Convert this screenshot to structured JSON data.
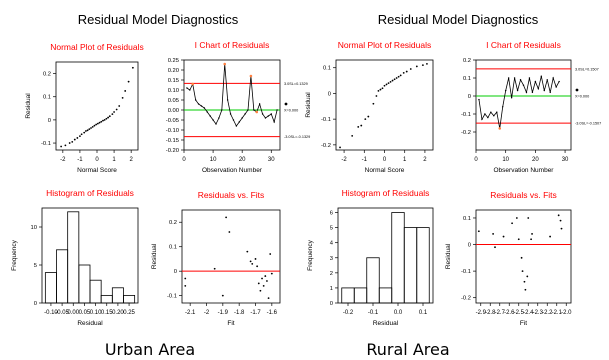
{
  "panels": [
    {
      "main_title": "Residual Model Diagnostics",
      "caption": "Urban Area"
    },
    {
      "main_title": "Residual Model Diagnostics",
      "caption": "Rural Area"
    }
  ],
  "colors": {
    "subplot_title": "#ff0000",
    "ref_line": "#ff0000",
    "center_line": "#00cc00",
    "points": "#000000",
    "flag_points": "#ff8040"
  },
  "chart_data": [
    {
      "panel": "Urban Area",
      "type": "scatter",
      "title": "Normal Plot of Residuals",
      "xlabel": "Normal Score",
      "ylabel": "Residual",
      "xlim": [
        -2.4,
        2.4
      ],
      "ylim": [
        -0.13,
        0.25
      ],
      "xticks": [
        -2,
        -1,
        0,
        1,
        2
      ],
      "yticks": [
        -0.1,
        0.0,
        0.1,
        0.2
      ],
      "points": [
        [
          -2.1,
          -0.115
        ],
        [
          -1.85,
          -0.11
        ],
        [
          -1.6,
          -0.1
        ],
        [
          -1.45,
          -0.095
        ],
        [
          -1.3,
          -0.085
        ],
        [
          -1.15,
          -0.078
        ],
        [
          -1.0,
          -0.07
        ],
        [
          -0.9,
          -0.062
        ],
        [
          -0.75,
          -0.055
        ],
        [
          -0.65,
          -0.048
        ],
        [
          -0.55,
          -0.045
        ],
        [
          -0.45,
          -0.04
        ],
        [
          -0.35,
          -0.035
        ],
        [
          -0.25,
          -0.03
        ],
        [
          -0.15,
          -0.025
        ],
        [
          -0.05,
          -0.02
        ],
        [
          0.05,
          -0.016
        ],
        [
          0.15,
          -0.012
        ],
        [
          0.25,
          -0.008
        ],
        [
          0.35,
          -0.003
        ],
        [
          0.45,
          0.0
        ],
        [
          0.55,
          0.005
        ],
        [
          0.65,
          0.01
        ],
        [
          0.75,
          0.016
        ],
        [
          0.9,
          0.025
        ],
        [
          1.0,
          0.034
        ],
        [
          1.15,
          0.045
        ],
        [
          1.3,
          0.06
        ],
        [
          1.5,
          0.095
        ],
        [
          1.65,
          0.125
        ],
        [
          1.85,
          0.165
        ],
        [
          2.1,
          0.225
        ]
      ]
    },
    {
      "panel": "Urban Area",
      "type": "line",
      "title": "I Chart of Residuals",
      "xlabel": "Observation Number",
      "ylabel": "",
      "xlim": [
        0,
        33
      ],
      "ylim": [
        -0.2,
        0.25
      ],
      "xticks": [
        0,
        10,
        20,
        30
      ],
      "yticks": [
        -0.2,
        -0.15,
        -0.1,
        -0.05,
        0.0,
        0.05,
        0.1,
        0.15,
        0.2,
        0.25
      ],
      "ytick_labels": [
        "-0.20",
        "-0.15",
        "-0.10",
        "-0.05",
        "0.00",
        "0.05",
        "0.10",
        "0.15",
        "0.20",
        "0.25"
      ],
      "ucl": 0.1329,
      "center": 0.0,
      "lcl": -0.1329,
      "ucl_label": "3.0SL=0.1329",
      "center_label": "X=0.000",
      "lcl_label": "-3.0SL=-0.1329",
      "y": [
        0.11,
        0.1,
        0.13,
        0.05,
        0.03,
        0.02,
        0.01,
        -0.01,
        -0.03,
        -0.05,
        -0.07,
        -0.04,
        0.0,
        0.23,
        0.05,
        -0.02,
        -0.05,
        -0.08,
        -0.06,
        -0.04,
        -0.02,
        0.0,
        0.17,
        0.0,
        -0.01,
        0.03,
        -0.02,
        -0.04,
        -0.03,
        -0.02,
        -0.06,
        0.0
      ],
      "flagged": [
        2,
        13,
        22,
        24
      ]
    },
    {
      "panel": "Urban Area",
      "type": "bar",
      "title": "Histogram of Residuals",
      "xlabel": "Residual",
      "ylabel": "Frequency",
      "bin_edges": [
        -0.125,
        -0.075,
        -0.025,
        0.025,
        0.075,
        0.125,
        0.175,
        0.225,
        0.275
      ],
      "values": [
        4,
        7,
        12,
        5,
        3,
        1,
        2,
        1
      ],
      "xlim": [
        -0.14,
        0.29
      ],
      "ylim": [
        0,
        12.5
      ],
      "xticks": [
        -0.1,
        -0.05,
        0.0,
        0.05,
        0.1,
        0.15,
        0.2,
        0.25
      ],
      "xtick_labels": [
        "-0.10",
        "-0.05",
        "0.00",
        "0.05",
        "0.10",
        "0.15",
        "0.20",
        "0.25"
      ],
      "yticks": [
        0,
        5,
        10
      ]
    },
    {
      "panel": "Urban Area",
      "type": "scatter",
      "title": "Residuals vs. Fits",
      "xlabel": "Fit",
      "ylabel": "Residual",
      "xlim": [
        -2.15,
        -1.55
      ],
      "ylim": [
        -0.13,
        0.25
      ],
      "xticks": [
        -2.1,
        -2.0,
        -1.9,
        -1.8,
        -1.7,
        -1.6
      ],
      "yticks": [
        -0.1,
        0.0,
        0.1,
        0.2
      ],
      "points": [
        [
          -2.13,
          -0.03
        ],
        [
          -2.13,
          -0.06
        ],
        [
          -1.95,
          0.01
        ],
        [
          -1.9,
          -0.1
        ],
        [
          -1.88,
          0.22
        ],
        [
          -1.86,
          0.16
        ],
        [
          -1.75,
          0.08
        ],
        [
          -1.73,
          0.04
        ],
        [
          -1.72,
          0.03
        ],
        [
          -1.7,
          0.05
        ],
        [
          -1.69,
          0.02
        ],
        [
          -1.68,
          -0.05
        ],
        [
          -1.67,
          -0.08
        ],
        [
          -1.66,
          -0.03
        ],
        [
          -1.65,
          -0.06
        ],
        [
          -1.64,
          -0.02
        ],
        [
          -1.63,
          -0.04
        ],
        [
          -1.62,
          -0.11
        ],
        [
          -1.61,
          0.07
        ],
        [
          -1.6,
          -0.01
        ]
      ]
    },
    {
      "panel": "Rural Area",
      "type": "scatter",
      "title": "Normal Plot of Residuals",
      "xlabel": "Normal Score",
      "ylabel": "Residual",
      "xlim": [
        -2.4,
        2.4
      ],
      "ylim": [
        -0.22,
        0.13
      ],
      "xticks": [
        -2,
        -1,
        0,
        1,
        2
      ],
      "yticks": [
        -0.2,
        -0.1,
        0.0,
        0.1
      ],
      "points": [
        [
          -2.2,
          -0.21
        ],
        [
          -1.6,
          -0.165
        ],
        [
          -1.3,
          -0.13
        ],
        [
          -1.15,
          -0.125
        ],
        [
          -0.95,
          -0.1
        ],
        [
          -0.8,
          -0.09
        ],
        [
          -0.55,
          -0.04
        ],
        [
          -0.4,
          -0.01
        ],
        [
          -0.3,
          0.01
        ],
        [
          -0.2,
          0.015
        ],
        [
          -0.1,
          0.02
        ],
        [
          0.0,
          0.03
        ],
        [
          0.1,
          0.035
        ],
        [
          0.2,
          0.04
        ],
        [
          0.3,
          0.045
        ],
        [
          0.4,
          0.05
        ],
        [
          0.5,
          0.055
        ],
        [
          0.6,
          0.06
        ],
        [
          0.7,
          0.065
        ],
        [
          0.8,
          0.07
        ],
        [
          0.95,
          0.08
        ],
        [
          1.1,
          0.085
        ],
        [
          1.3,
          0.095
        ],
        [
          1.6,
          0.105
        ],
        [
          1.9,
          0.11
        ],
        [
          2.1,
          0.115
        ]
      ]
    },
    {
      "panel": "Rural Area",
      "type": "line",
      "title": "I Chart of Residuals",
      "xlabel": "Observation Number",
      "ylabel": "Residual",
      "xlim": [
        0,
        32
      ],
      "ylim": [
        -0.3,
        0.2
      ],
      "xticks": [
        0,
        10,
        20,
        30
      ],
      "yticks": [
        -0.2,
        -0.1,
        0.0,
        0.1,
        0.2
      ],
      "ucl": 0.1507,
      "center": 0.0,
      "lcl": -0.1507,
      "ucl_label": "3.0SL=0.1507",
      "center_label": "X=0.000",
      "lcl_label": "-3.0SL=-0.1507",
      "y": [
        -0.02,
        -0.13,
        -0.1,
        -0.12,
        -0.09,
        -0.11,
        -0.09,
        -0.18,
        -0.06,
        0.03,
        0.1,
        -0.01,
        0.1,
        0.03,
        0.09,
        0.06,
        0.02,
        0.1,
        0.02,
        0.08,
        0.04,
        0.11,
        0.03,
        0.09,
        0.02,
        0.1,
        0.05,
        0.08
      ],
      "flagged": [
        7
      ]
    },
    {
      "panel": "Rural Area",
      "type": "bar",
      "title": "Histogram of Residuals",
      "xlabel": "Residual",
      "ylabel": "Frequency",
      "bin_edges": [
        -0.225,
        -0.175,
        -0.125,
        -0.075,
        -0.025,
        0.025,
        0.075,
        0.125
      ],
      "values": [
        1,
        1,
        3,
        1,
        6,
        5,
        5
      ],
      "xlim": [
        -0.24,
        0.14
      ],
      "ylim": [
        0,
        6.3
      ],
      "xticks": [
        -0.2,
        -0.1,
        0.0,
        0.1
      ],
      "xtick_labels": [
        "-0.2",
        "-0.1",
        "0.0",
        "0.1"
      ],
      "yticks": [
        0,
        1,
        2,
        3,
        4,
        5,
        6
      ]
    },
    {
      "panel": "Rural Area",
      "type": "scatter",
      "title": "Residuals vs. Fits",
      "xlabel": "Fit",
      "ylabel": "Residual",
      "xlim": [
        -2.95,
        -1.95
      ],
      "ylim": [
        -0.22,
        0.13
      ],
      "xticks": [
        -2.9,
        -2.8,
        -2.7,
        -2.6,
        -2.5,
        -2.4,
        -2.3,
        -2.2,
        -2.1,
        -2.0
      ],
      "xtick_labels": [
        "-2.9",
        "-2.8",
        "-2.7",
        "-2.6",
        "-2.5",
        "-2.4",
        "-2.3",
        "-2.2",
        "-2.1",
        "-2.0"
      ],
      "yticks": [
        -0.2,
        -0.1,
        0.0,
        0.1
      ],
      "points": [
        [
          -2.92,
          0.05
        ],
        [
          -2.77,
          0.04
        ],
        [
          -2.75,
          -0.01
        ],
        [
          -2.66,
          0.03
        ],
        [
          -2.57,
          0.08
        ],
        [
          -2.52,
          0.1
        ],
        [
          -2.5,
          0.02
        ],
        [
          -2.47,
          -0.05
        ],
        [
          -2.46,
          -0.1
        ],
        [
          -2.44,
          -0.14
        ],
        [
          -2.43,
          -0.17
        ],
        [
          -2.41,
          -0.12
        ],
        [
          -2.4,
          0.1
        ],
        [
          -2.37,
          0.02
        ],
        [
          -2.36,
          0.04
        ],
        [
          -2.17,
          0.03
        ],
        [
          -2.08,
          0.11
        ],
        [
          -2.06,
          0.09
        ],
        [
          -2.05,
          0.06
        ]
      ]
    }
  ]
}
